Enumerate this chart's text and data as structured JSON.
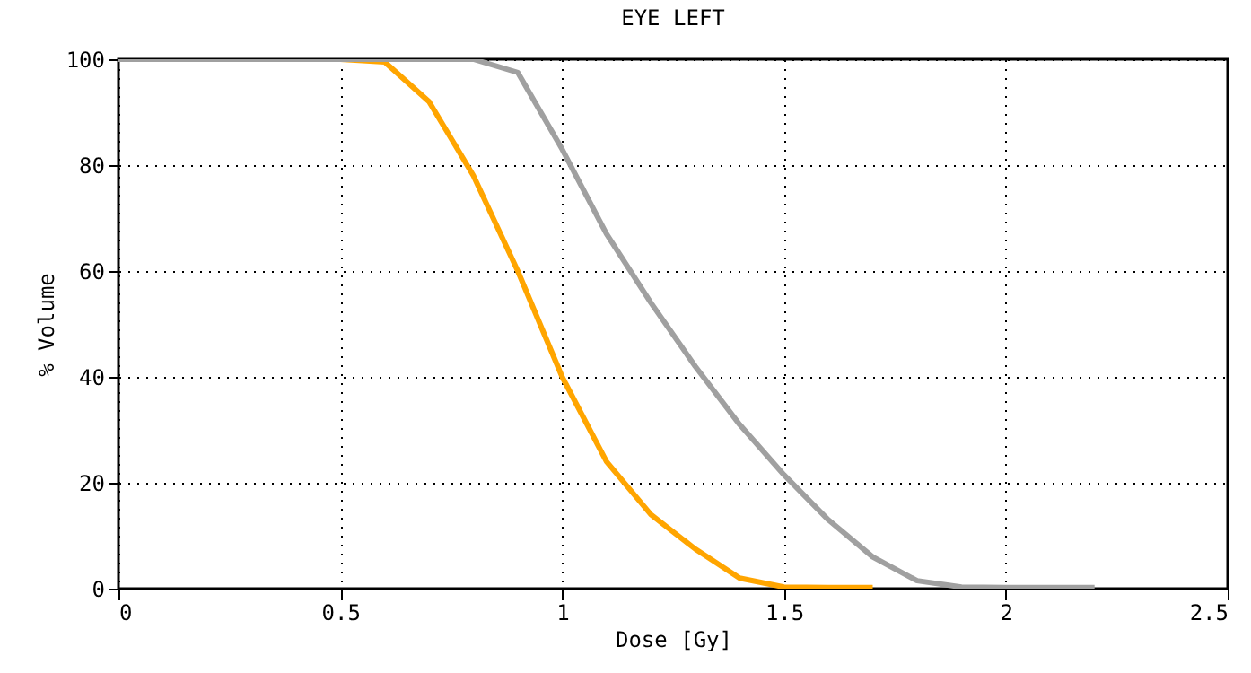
{
  "chart_data": {
    "type": "line",
    "title": "EYE LEFT",
    "xlabel": "Dose [Gy]",
    "ylabel": "% Volume",
    "series": [
      {
        "color": "#ffa500",
        "x": [
          0,
          0.5,
          0.6,
          0.7,
          0.8,
          0.9,
          1.0,
          1.1,
          1.2,
          1.3,
          1.4,
          1.5,
          1.6,
          1.7
        ],
        "values": [
          100,
          100,
          99.5,
          92,
          78,
          60,
          40,
          24,
          14,
          7.5,
          2,
          0.3,
          0.2,
          0.2
        ]
      },
      {
        "color": "#a0a0a0",
        "x": [
          0,
          0.8,
          0.9,
          1.0,
          1.1,
          1.2,
          1.3,
          1.4,
          1.5,
          1.6,
          1.7,
          1.8,
          1.9,
          2.0,
          2.1,
          2.2
        ],
        "values": [
          100,
          100,
          97.5,
          83,
          67,
          54,
          42,
          31,
          21.5,
          13,
          6,
          1.5,
          0.3,
          0.2,
          0.2,
          0.2
        ]
      }
    ],
    "xlim": [
      0,
      2.5
    ],
    "xticks": [
      0,
      0.5,
      1,
      1.5,
      2,
      2.5
    ],
    "ylim": [
      0,
      100
    ],
    "yticks": [
      0,
      20,
      40,
      60,
      80,
      100
    ],
    "grid": true,
    "line_style": "solid",
    "marker": "none"
  }
}
